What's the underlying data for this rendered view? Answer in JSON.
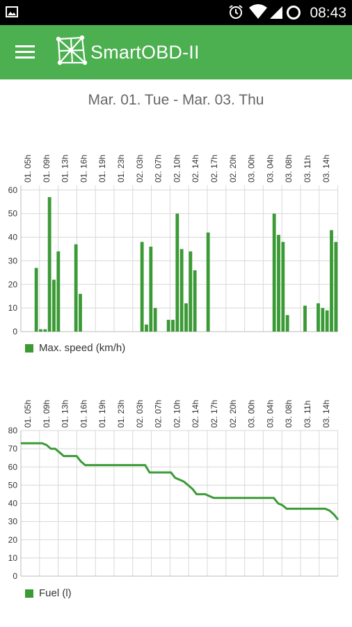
{
  "status_bar": {
    "time": "08:43",
    "icons": [
      "image-icon",
      "alarm-icon",
      "wifi-icon",
      "signal-icon",
      "sync-icon"
    ]
  },
  "app_bar": {
    "title": "SmartOBD-II",
    "menu_icon": "hamburger-menu-icon",
    "logo_icon": "obd-network-logo-icon",
    "color": "#4caf50"
  },
  "date_range": "Mar. 01. Tue - Mar. 03. Thu",
  "charts": {
    "speed": {
      "legend": "Max. speed (km/h)"
    },
    "fuel": {
      "legend": "Fuel (l)"
    }
  },
  "chart_data": [
    {
      "type": "bar",
      "ylabel": "",
      "ylim": [
        0,
        62
      ],
      "yticks": [
        0,
        10,
        20,
        30,
        40,
        50,
        60
      ],
      "grid": true,
      "color": "#3a9a35",
      "x_tick_labels": [
        "01. 05h",
        "01. 09h",
        "01. 13h",
        "01. 16h",
        "01. 19h",
        "01. 23h",
        "02. 03h",
        "02. 07h",
        "02. 10h",
        "02. 14h",
        "02. 17h",
        "02. 20h",
        "03. 00h",
        "03. 04h",
        "03. 08h",
        "03. 11h",
        "03. 14h"
      ],
      "series": [
        {
          "name": "Max. speed (km/h)",
          "values": [
            0,
            0,
            0,
            27,
            1,
            1,
            57,
            22,
            34,
            0,
            0,
            0,
            37,
            16,
            0,
            0,
            0,
            0,
            0,
            0,
            0,
            0,
            0,
            0,
            0,
            0,
            0,
            38,
            3,
            36,
            10,
            0,
            0,
            5,
            5,
            50,
            35,
            12,
            34,
            26,
            0,
            0,
            42,
            0,
            0,
            0,
            0,
            0,
            0,
            0,
            0,
            0,
            0,
            0,
            0,
            0,
            0,
            50,
            41,
            38,
            7,
            0,
            0,
            0,
            11,
            0,
            0,
            12,
            10,
            9,
            43,
            38
          ]
        }
      ]
    },
    {
      "type": "line",
      "ylabel": "",
      "ylim": [
        0,
        80
      ],
      "yticks": [
        0,
        10,
        20,
        30,
        40,
        50,
        60,
        70,
        80
      ],
      "grid": true,
      "color": "#3a9a35",
      "x_tick_labels": [
        "01. 05h",
        "01. 09h",
        "01. 13h",
        "01. 16h",
        "01. 19h",
        "01. 23h",
        "02. 03h",
        "02. 07h",
        "02. 10h",
        "02. 14h",
        "02. 17h",
        "02. 20h",
        "03. 00h",
        "03. 04h",
        "03. 08h",
        "03. 11h",
        "03. 14h"
      ],
      "series": [
        {
          "name": "Fuel (l)",
          "values": [
            73,
            73,
            73,
            73,
            73,
            73,
            72,
            70,
            70,
            68,
            66,
            66,
            66,
            66,
            63,
            61,
            61,
            61,
            61,
            61,
            61,
            61,
            61,
            61,
            61,
            61,
            61,
            61,
            61,
            61,
            57,
            57,
            57,
            57,
            57,
            57,
            54,
            53,
            52,
            50,
            48,
            45,
            45,
            45,
            44,
            43,
            43,
            43,
            43,
            43,
            43,
            43,
            43,
            43,
            43,
            43,
            43,
            43,
            43,
            43,
            40,
            39,
            37,
            37,
            37,
            37,
            37,
            37,
            37,
            37,
            37,
            37,
            36,
            34,
            31
          ]
        }
      ]
    }
  ]
}
